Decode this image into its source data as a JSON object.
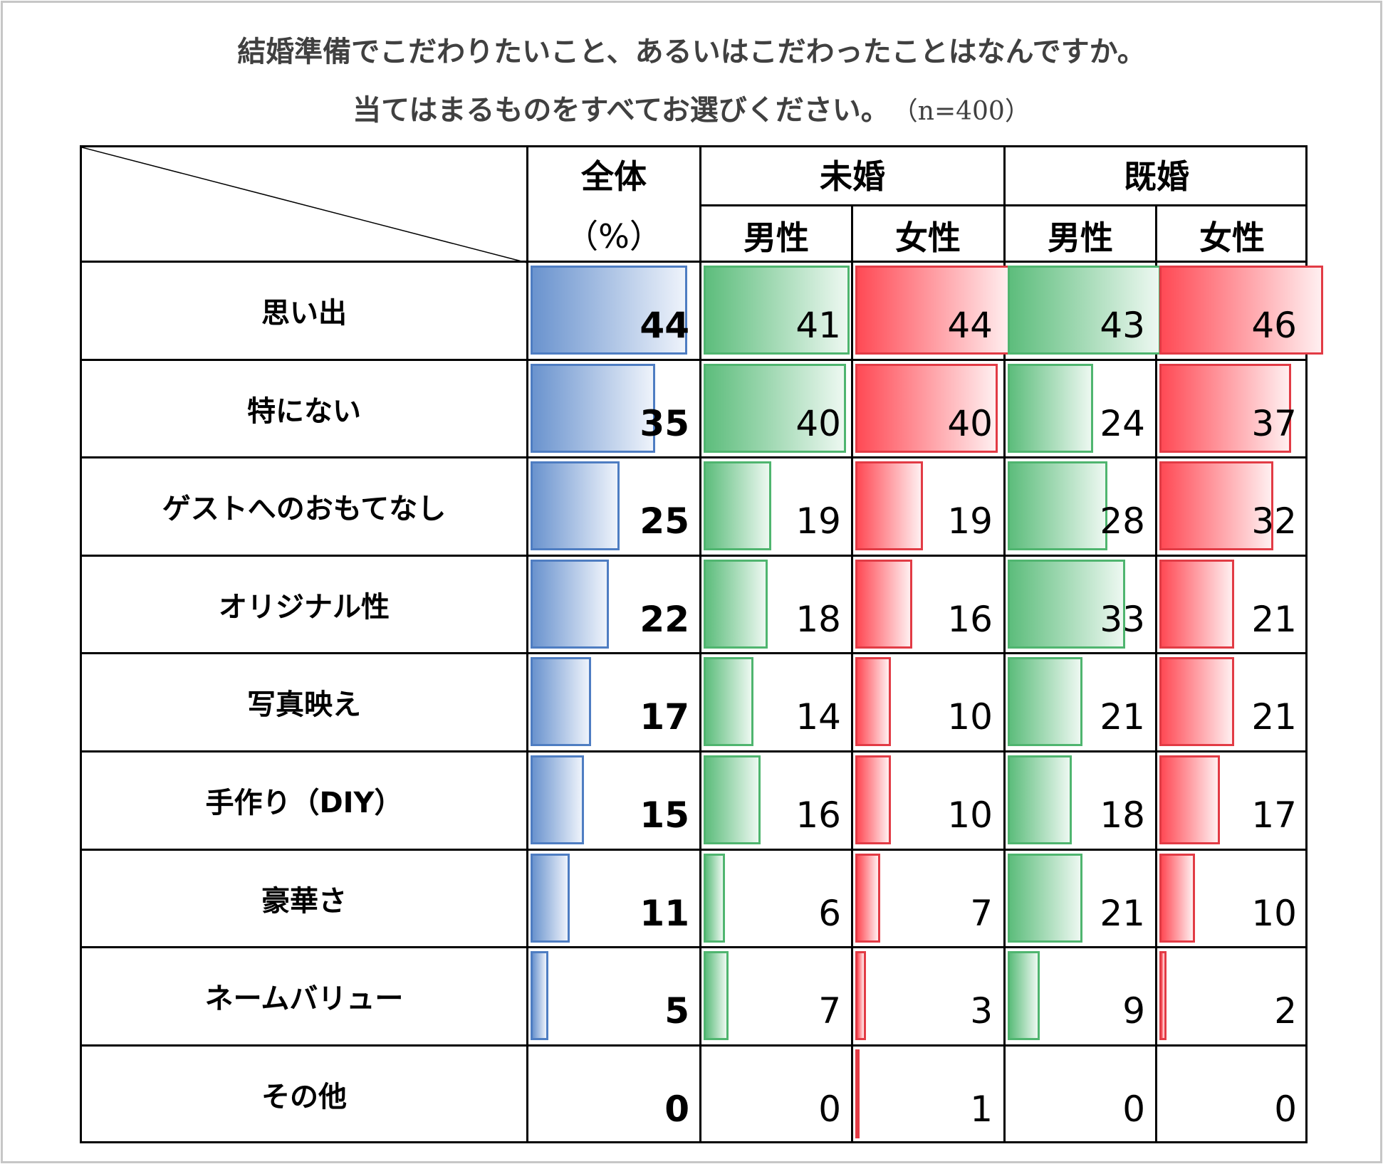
{
  "title": {
    "line1": "結婚準備でこだわりたいこと、あるいはこだわったことはなんですか。",
    "line2": "当てはまるものをすべてお選びください。",
    "n": "（n=400）"
  },
  "headers": {
    "all": "全体",
    "unit": "（%）",
    "unmarried": "未婚",
    "married": "既婚",
    "male": "男性",
    "female": "女性"
  },
  "colors": {
    "all": "#6a93ce",
    "male": "#5dbd7c",
    "female": "#ff4a55"
  },
  "chart_data": {
    "type": "table",
    "unit": "%",
    "columns": [
      {
        "key": "all",
        "label": "全体"
      },
      {
        "key": "unmarried_male",
        "label": "未婚 男性"
      },
      {
        "key": "unmarried_female",
        "label": "未婚 女性"
      },
      {
        "key": "married_male",
        "label": "既婚 男性"
      },
      {
        "key": "married_female",
        "label": "既婚 女性"
      }
    ],
    "rows": [
      {
        "label": "思い出",
        "values": [
          44,
          41,
          44,
          43,
          46
        ]
      },
      {
        "label": "特にない",
        "values": [
          35,
          40,
          40,
          24,
          37
        ]
      },
      {
        "label": "ゲストへのおもてなし",
        "values": [
          25,
          19,
          19,
          28,
          32
        ]
      },
      {
        "label": "オリジナル性",
        "values": [
          22,
          18,
          16,
          33,
          21
        ]
      },
      {
        "label": "写真映え",
        "values": [
          17,
          14,
          10,
          21,
          21
        ]
      },
      {
        "label": "手作り（DIY）",
        "values": [
          15,
          16,
          10,
          18,
          17
        ]
      },
      {
        "label": "豪華さ",
        "values": [
          11,
          6,
          7,
          21,
          10
        ]
      },
      {
        "label": "ネームバリュー",
        "values": [
          5,
          7,
          3,
          9,
          2
        ]
      },
      {
        "label": "その他",
        "values": [
          0,
          0,
          1,
          0,
          0
        ]
      }
    ]
  }
}
